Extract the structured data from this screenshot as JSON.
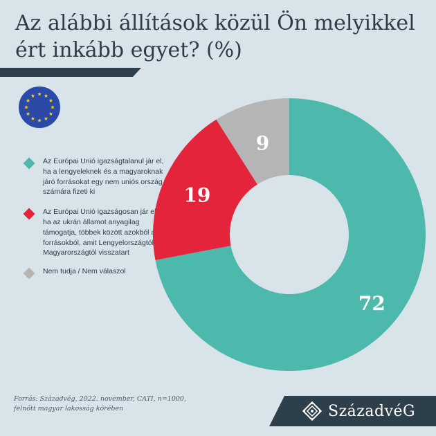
{
  "title": "Az alábbi állítások közül Ön melyikkel ért inkább egyet? (%)",
  "legend": [
    {
      "label": "Az Európai Unió igazságtalanul jár el, ha a lengyeleknek és a magyaroknak járó forrásokat egy nem uniós ország számára fizeti ki",
      "color": "#4db8ac"
    },
    {
      "label": "Az Európai Unió igazságosan jár el, ha az ukrán államot anyagilag támogatja, többek között azokból a forrásokból, amit Lengyelországtól és Magyarországtól visszatart",
      "color": "#e3243b"
    },
    {
      "label": "Nem tudja / Nem válaszol",
      "color": "#b5b5b5"
    }
  ],
  "chart_data": {
    "type": "pie",
    "labels": [
      "Az Európai Unió igazságtalanul jár el, ha a lengyeleknek és a magyaroknak járó forrásokat egy nem uniós ország számára fizeti ki",
      "Az Európai Unió igazságosan jár el, ha az ukrán államot anyagilag támogatja, többek között azokból a forrásokból, amit Lengyelországtól és Magyarországtól visszatart",
      "Nem tudja / Nem válaszol"
    ],
    "values": [
      72,
      19,
      9
    ],
    "value_labels": [
      "72",
      "19",
      "9"
    ],
    "colors": [
      "#4db8ac",
      "#e3243b",
      "#b5b5b5"
    ],
    "donut": true,
    "start": "top",
    "direction": "clockwise"
  },
  "source": {
    "line1": "Forrás: Századvég, 2022. november, CATI, n=1000,",
    "line2": "felnőtt magyar lakosság körében"
  },
  "brand": {
    "name": "SzázadvéG",
    "color": "#2d3f4a"
  },
  "flag_icon": "eu-flag-icon",
  "emblem_icon": "szazadveg-emblem-icon"
}
